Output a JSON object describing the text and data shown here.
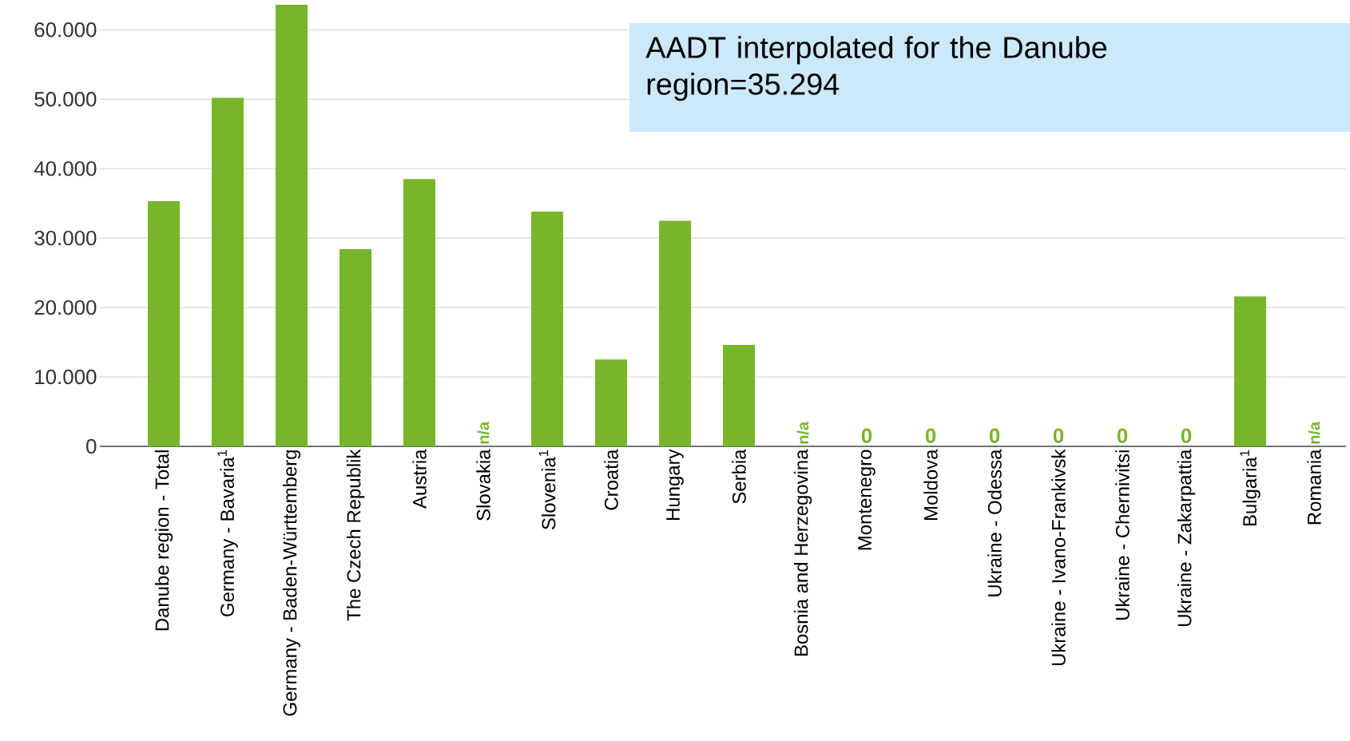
{
  "chart_data": {
    "type": "bar",
    "categories": [
      "Danube region - Total",
      "Germany - Bavaria$^{1}$",
      "Germany - Baden-Württemberg",
      "The Czech Republik",
      "Austria",
      "Slovakia",
      "Slovenia$^{1}$",
      "Croatia",
      "Hungary",
      "Serbia",
      "Bosnia and Herzegovina",
      "Montenegro",
      "Moldova",
      "Ukraine - Odessa",
      "Ukraine - Ivano-Frankivsk",
      "Ukraine - Chernivitsi",
      "Ukraine - Zakarpattia",
      "Bulgaria$^{1}$",
      "Romania"
    ],
    "values": [
      35300,
      50200,
      63600,
      28400,
      38500,
      null,
      33800,
      12500,
      32500,
      14600,
      null,
      0,
      0,
      0,
      0,
      0,
      0,
      21600,
      null
    ],
    "value_labels": [
      null,
      null,
      null,
      null,
      null,
      "n/a",
      null,
      null,
      null,
      null,
      "n/a",
      "0",
      "0",
      "0",
      "0",
      "0",
      "0",
      null,
      "n/a"
    ],
    "color": "#77b52a",
    "yticks": [
      {
        "value": 0,
        "label": "0"
      },
      {
        "value": 10000,
        "label": "10.000"
      },
      {
        "value": 20000,
        "label": "20.000"
      },
      {
        "value": 30000,
        "label": "30.000"
      },
      {
        "value": 40000,
        "label": "40.000"
      },
      {
        "value": 50000,
        "label": "50.000"
      },
      {
        "value": 60000,
        "label": "60.000"
      }
    ],
    "ylim": [
      0,
      63600
    ],
    "grid": "y",
    "annotations": [
      "AADT interpolated for the Danube region=35.294"
    ]
  }
}
